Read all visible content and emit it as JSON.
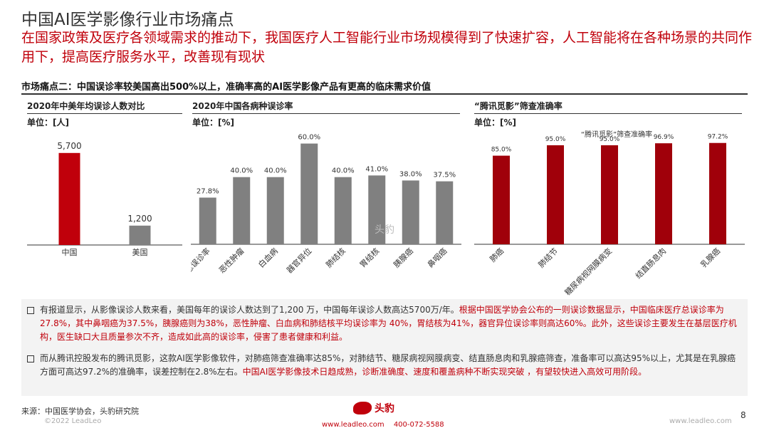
{
  "header": {
    "title": "中国AI医学影像行业市场痛点",
    "subtitle": "在国家政策及医疗各领域需求的推动下，我国医疗人工智能行业市场规模得到了快速扩容，人工智能将在各种场景的共同作用下，提高医疗服务水平，改善现有现状"
  },
  "section": {
    "title": "市场痛点二：中国误诊率较美国高出500%以上，准确率高的AI医学影像产品有更高的临床需求价值"
  },
  "charts": {
    "left": {
      "header": "2020年中美年均误诊人数对比",
      "unit": "单位：[人]"
    },
    "middle": {
      "header": "2020年中国各病种误诊率",
      "unit": "单位：[%]"
    },
    "right": {
      "header": "“腾讯觅影”筛查准确率",
      "unit": "单位：[%]",
      "legend": "“腾讯觅影”筛查准确率"
    }
  },
  "chart_data": [
    {
      "type": "bar",
      "categories": [
        "中国",
        "美国"
      ],
      "values": [
        5700,
        1200
      ],
      "value_labels": [
        "5,700",
        "1,200"
      ],
      "title": "2020年中美年均误诊人数对比",
      "ylabel": "单位：[人]",
      "ylim": [
        0,
        6000
      ],
      "colors": [
        "#c0000b",
        "#808080"
      ],
      "grid": false
    },
    {
      "type": "bar",
      "categories": [
        "临床总误诊率",
        "恶性肿瘤",
        "白血病",
        "器官异位",
        "肺结核",
        "胃结核",
        "胰腺癌",
        "鼻咽癌"
      ],
      "values": [
        27.8,
        40.0,
        40.0,
        60.0,
        40.0,
        41.0,
        38.0,
        37.5
      ],
      "value_labels": [
        "27.8%",
        "40.0%",
        "40.0%",
        "60.0%",
        "40.0%",
        "41.0%",
        "38.0%",
        "37.5%"
      ],
      "title": "2020年中国各病种误诊率",
      "ylabel": "单位：[%]",
      "ylim": [
        0,
        70
      ],
      "colors": [
        "#808080"
      ],
      "grid": false
    },
    {
      "type": "bar",
      "categories": [
        "肺癌",
        "肺结节",
        "糖尿病视网膜病变",
        "结直肠息肉",
        "乳腺癌"
      ],
      "values": [
        85.0,
        95.0,
        95.0,
        96.9,
        97.2
      ],
      "value_labels": [
        "85.0%",
        "95.0%",
        "95.0%",
        "96.9%",
        "97.2%"
      ],
      "title": "“腾讯觅影”筛查准确率",
      "ylabel": "单位：[%]",
      "ylim": [
        0,
        110
      ],
      "colors": [
        "#a0000a"
      ],
      "grid": false
    }
  ],
  "notes": {
    "p1_black": "有报道显示，从影像误诊人数来看，美国每年的误诊人数达到了1,200  万，中国每年误诊人数高达5700万/年。",
    "p1_red": "根据中国医学协会公布的一则误诊数据显示，中国临床医疗总误诊率为27.8%，其中鼻咽癌为37.5%，胰腺癌则为38%，恶性肿瘤、白血病和肺结核平均误诊率为 40%，胃结核为41%，器官异位误诊率则高达60%。此外，这些误诊主要发生在基层医疗机构，医生缺口大且质量参次不齐，造成如此高的误诊率，侵害了患者健康和利益。",
    "p2_black": "而从腾讯控股发布的腾讯觅影，这款AI医学影像软件，对肺癌筛查准确率达85%，对肺结节、糖尿病视网膜病变、结直肠息肉和乳腺癌筛查，准备率可以高达95%以上，尤其是在乳腺癌方面可高达97.2%的准确率，误差控制在2.8%左右。",
    "p2_red": "中国AI医学影像技术日趋成熟，诊断准确度、速度和覆盖病种不断实现突破 ，有望较快进入高效可用阶段。"
  },
  "footer": {
    "source": "来源：中国医学协会，头豹研究院",
    "copyright": "©2022 LeadLeo",
    "logo_text": "头豹",
    "website": "www.leadleo.com",
    "phone": "400-072-5588",
    "site_right": "www.leadleo.com",
    "page": "8"
  },
  "watermark": "头豹"
}
